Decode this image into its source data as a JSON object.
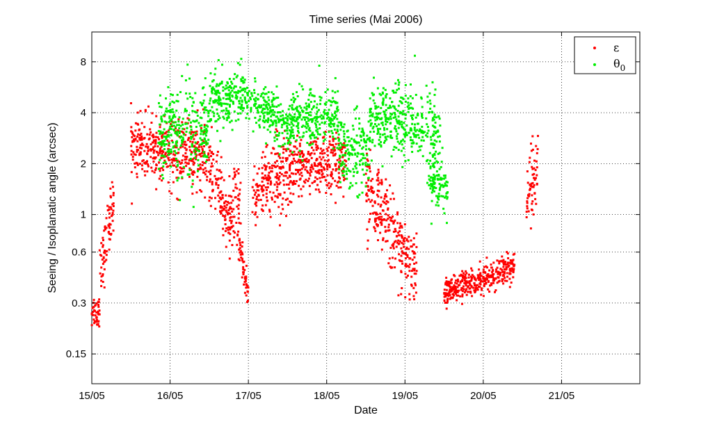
{
  "chart_data": {
    "type": "scatter",
    "title": "Time series (Mai 2006)",
    "xlabel": "Date",
    "ylabel": "Seeing / Isoplanatic angle (arcsec)",
    "x_axis": {
      "unit": "days since 15/05 00:00",
      "xlim": [
        0,
        7
      ],
      "ticks": [
        0,
        1,
        2,
        3,
        4,
        5,
        6
      ],
      "tick_labels": [
        "15/05",
        "16/05",
        "17/05",
        "18/05",
        "19/05",
        "20/05",
        "21/05"
      ]
    },
    "y_axis": {
      "scale": "log",
      "ylim": [
        0.1,
        12
      ],
      "ticks": [
        0.15,
        0.3,
        0.6,
        1,
        2,
        4,
        8
      ],
      "tick_labels": [
        "0.15",
        "0.3",
        "0.6",
        "1",
        "2",
        "4",
        "8"
      ]
    },
    "grid": true,
    "grid_style": "dotted",
    "legend_position": "top-right",
    "series": [
      {
        "name": "ε",
        "legend_label": "ε",
        "color": "#ff0000",
        "segments": [
          {
            "x": [
              0.0,
              0.1
            ],
            "y": [
              0.27,
              0.27
            ],
            "spread": 0.12
          },
          {
            "x": [
              0.1,
              0.28
            ],
            "y": [
              0.4,
              1.3
            ],
            "spread": 0.2
          },
          {
            "x": [
              0.5,
              1.5
            ],
            "y": [
              2.5,
              2.2
            ],
            "spread": 0.22
          },
          {
            "x": [
              1.5,
              1.8
            ],
            "y": [
              1.8,
              0.9
            ],
            "spread": 0.22
          },
          {
            "x": [
              1.8,
              1.9
            ],
            "y": [
              1.2,
              1.1
            ],
            "spread": 0.3
          },
          {
            "x": [
              1.88,
              2.0
            ],
            "y": [
              0.7,
              0.32
            ],
            "spread": 0.12
          },
          {
            "x": [
              2.05,
              2.55
            ],
            "y": [
              1.3,
              2.0
            ],
            "spread": 0.25
          },
          {
            "x": [
              2.55,
              3.25
            ],
            "y": [
              1.9,
              2.0
            ],
            "spread": 0.2
          },
          {
            "x": [
              3.5,
              4.15
            ],
            "y": [
              1.5,
              0.45
            ],
            "spread": 0.25
          },
          {
            "x": [
              4.5,
              5.4
            ],
            "y": [
              0.35,
              0.48
            ],
            "spread": 0.1
          },
          {
            "x": [
              5.55,
              5.7
            ],
            "y": [
              1.1,
              2.0
            ],
            "spread": 0.3
          }
        ]
      },
      {
        "name": "θ0",
        "legend_label": "θ",
        "legend_subscript": "0",
        "color": "#00ee00",
        "segments": [
          {
            "x": [
              0.85,
              1.5
            ],
            "y": [
              3.0,
              3.0
            ],
            "spread": 0.3
          },
          {
            "x": [
              1.5,
              2.1
            ],
            "y": [
              5.0,
              5.0
            ],
            "spread": 0.18
          },
          {
            "x": [
              2.1,
              2.55
            ],
            "y": [
              4.3,
              3.4
            ],
            "spread": 0.16
          },
          {
            "x": [
              2.55,
              3.15
            ],
            "y": [
              3.6,
              3.8
            ],
            "spread": 0.2
          },
          {
            "x": [
              3.15,
              3.55
            ],
            "y": [
              2.4,
              2.3
            ],
            "spread": 0.25
          },
          {
            "x": [
              3.55,
              4.45
            ],
            "y": [
              3.7,
              3.2
            ],
            "spread": 0.25
          },
          {
            "x": [
              4.3,
              4.55
            ],
            "y": [
              1.7,
              1.4
            ],
            "spread": 0.2
          }
        ]
      }
    ]
  }
}
